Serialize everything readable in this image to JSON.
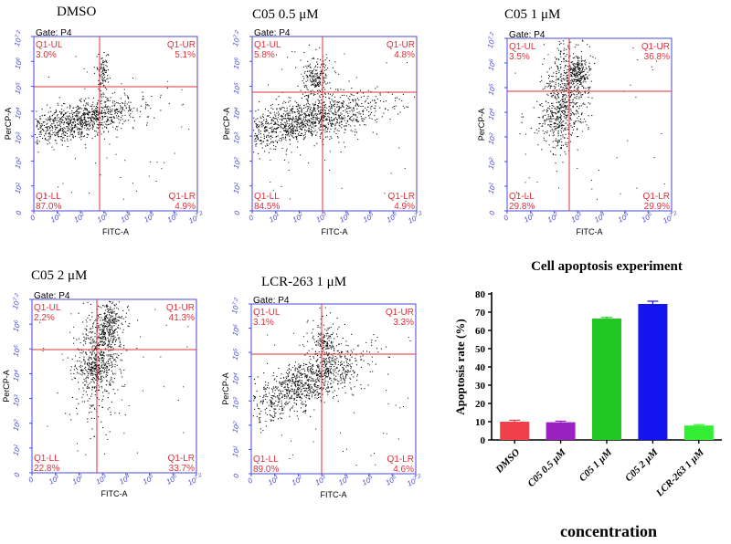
{
  "figure": {
    "flow_panels": [
      {
        "title": "DMSO",
        "gate": "Gate: P4",
        "quadrants": {
          "ul": {
            "label": "Q1-UL",
            "value": "3.0%"
          },
          "ur": {
            "label": "Q1-UR",
            "value": "5.1%"
          },
          "ll": {
            "label": "Q1-LL",
            "value": "87.0%"
          },
          "lr": {
            "label": "Q1-LR",
            "value": "4.9%"
          }
        },
        "xlabel": "FITC-A",
        "ylabel": "PerCP-A",
        "x_ticks": [
          "0",
          "10^1",
          "10^2",
          "10^3",
          "10^4",
          "10^5",
          "10^6",
          "10^7.2"
        ],
        "y_ticks": [
          "0",
          "10^1",
          "10^2",
          "10^3",
          "10^4",
          "10^5",
          "10^6",
          "10^7.2"
        ]
      },
      {
        "title": "C05   0.5 μM",
        "gate": "Gate: P4",
        "quadrants": {
          "ul": {
            "label": "Q1-UL",
            "value": "5.8%"
          },
          "ur": {
            "label": "Q1-UR",
            "value": "4.8%"
          },
          "ll": {
            "label": "Q1-LL",
            "value": "84.5%"
          },
          "lr": {
            "label": "Q1-LR",
            "value": "4.9%"
          }
        },
        "xlabel": "FITC-A",
        "ylabel": "PerCP-A",
        "x_ticks": [
          "0",
          "10^1",
          "10^2",
          "10^3",
          "10^4",
          "10^5",
          "10^6",
          "10^7.2"
        ],
        "y_ticks": [
          "0",
          "10^1",
          "10^2",
          "10^3",
          "10^4",
          "10^5",
          "10^6",
          "10^7.2"
        ]
      },
      {
        "title": "C05   1 μM",
        "gate": "Gate: P4",
        "quadrants": {
          "ul": {
            "label": "Q1-UL",
            "value": "3.5%"
          },
          "ur": {
            "label": "Q1-UR",
            "value": "36.8%"
          },
          "ll": {
            "label": "Q1-LL",
            "value": "29.8%"
          },
          "lr": {
            "label": "Q1-LR",
            "value": "29.9%"
          }
        },
        "xlabel": "FITC-A",
        "ylabel": "PerCP-A",
        "x_ticks": [
          "0",
          "10^1",
          "10^2",
          "10^3",
          "10^4",
          "10^5",
          "10^6",
          "10^7.2"
        ],
        "y_ticks": [
          "0",
          "10^1",
          "10^2",
          "10^3",
          "10^4",
          "10^5",
          "10^6",
          "10^7.2"
        ]
      },
      {
        "title": "C05 2 μM",
        "gate": "Gate: P4",
        "quadrants": {
          "ul": {
            "label": "Q1-UL",
            "value": "2.2%"
          },
          "ur": {
            "label": "Q1-UR",
            "value": "41.3%"
          },
          "ll": {
            "label": "Q1-LL",
            "value": "22.8%"
          },
          "lr": {
            "label": "Q1-LR",
            "value": "33.7%"
          }
        },
        "xlabel": "FITC-A",
        "ylabel": "PerCP-A",
        "x_ticks": [
          "0",
          "10^1",
          "10^2",
          "10^3",
          "10^4",
          "10^5",
          "10^6",
          "10^7.2"
        ],
        "y_ticks": [
          "0",
          "10^1",
          "10^2",
          "10^3",
          "10^4",
          "10^5",
          "10^6",
          "10^7.2"
        ]
      },
      {
        "title": "LCR-263    1 μM",
        "gate": "Gate: P4",
        "quadrants": {
          "ul": {
            "label": "Q1-UL",
            "value": "3.1%"
          },
          "ur": {
            "label": "Q1-UR",
            "value": "3.3%"
          },
          "ll": {
            "label": "Q1-LL",
            "value": "89.0%"
          },
          "lr": {
            "label": "Q1-LR",
            "value": "4.6%"
          }
        },
        "xlabel": "FITC-A",
        "ylabel": "PerCP-A",
        "x_ticks": [
          "0",
          "10^1",
          "10^2",
          "10^3",
          "10^4",
          "10^5",
          "10^6",
          "10^7.2"
        ],
        "y_ticks": [
          "0",
          "10^1",
          "10^2",
          "10^3",
          "10^4",
          "10^5",
          "10^6",
          "10^7.2"
        ]
      }
    ]
  },
  "chart_data": {
    "type": "bar",
    "title": "Cell apoptosis experiment",
    "categories": [
      "DMSO",
      "C05 0.5 μM",
      "C05 1 μM",
      "C05 2 μM",
      "LCR-263 1 μM"
    ],
    "values": [
      10,
      9.7,
      66.5,
      74.5,
      7.9
    ],
    "errors": [
      0.8,
      0.6,
      0.6,
      1.5,
      0.5
    ],
    "colors": [
      "#f0404a",
      "#9b22c0",
      "#22c822",
      "#1414f0",
      "#33ee33"
    ],
    "xlabel": "concentration",
    "ylabel": "Apoptosis rate (%)",
    "ylim": [
      0,
      80
    ],
    "yticks": [
      0,
      10,
      20,
      30,
      40,
      50,
      60,
      70,
      80
    ]
  }
}
